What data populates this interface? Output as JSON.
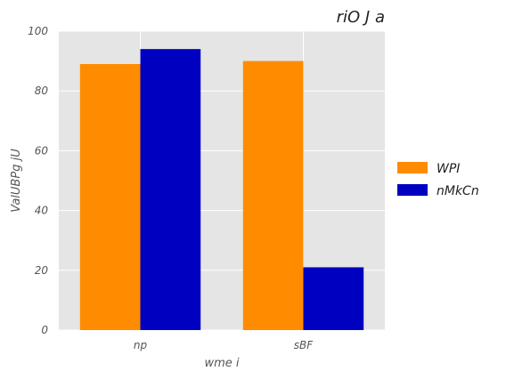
{
  "chart_data": {
    "type": "bar",
    "title": "riO J  a",
    "xlabel": "wme i",
    "ylabel": "ValUBPg jU",
    "categories": [
      "np",
      "sBF"
    ],
    "series": [
      {
        "name": "WPI",
        "color": "#ff8c00",
        "values": [
          89,
          90
        ]
      },
      {
        "name": "nMkCn",
        "color": "#0000c0",
        "values": [
          94,
          21
        ]
      }
    ],
    "ylim": [
      0,
      100
    ],
    "yticks": [
      0,
      20,
      40,
      60,
      80,
      100
    ],
    "grid": true,
    "legend_position": "right"
  }
}
